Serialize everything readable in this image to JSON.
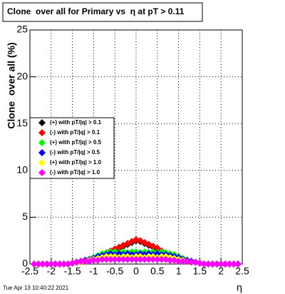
{
  "chart_data": {
    "type": "scatter",
    "title": "Clone  over all for Primary vs  η at pT > 0.11",
    "x_label": "η",
    "y_label": "Clone  over all (%)",
    "footer": "Tue Apr 13 10:40:22 2021",
    "xlim": [
      -2.5,
      2.5
    ],
    "ylim": [
      0,
      25
    ],
    "xticks": [
      -2.5,
      -2,
      -1.5,
      -1,
      -0.5,
      0,
      0.5,
      1,
      1.5,
      2,
      2.5
    ],
    "yticks": [
      0,
      5,
      10,
      15,
      20,
      25
    ],
    "grid": true,
    "legend": "left",
    "x": [
      -2.4,
      -2.3,
      -2.2,
      -2.1,
      -2,
      -1.9,
      -1.8,
      -1.7,
      -1.6,
      -1.5,
      -1.4,
      -1.3,
      -1.2,
      -1.1,
      -1,
      -0.9,
      -0.8,
      -0.7,
      -0.6,
      -0.5,
      -0.4,
      -0.3,
      -0.2,
      -0.1,
      0,
      0.1,
      0.2,
      0.3,
      0.4,
      0.5,
      0.6,
      0.7,
      0.8,
      0.9,
      1,
      1.1,
      1.2,
      1.3,
      1.4,
      1.5,
      1.6,
      1.7,
      1.8,
      1.9,
      2,
      2.1,
      2.2,
      2.3,
      2.4
    ],
    "series": [
      {
        "name": "(+) with pT/|q| > 0.1",
        "color": "#000000",
        "values": [
          0,
          0,
          0,
          0,
          0,
          0,
          0,
          0,
          0,
          0.1,
          0.2,
          0.3,
          0.4,
          0.5,
          0.6,
          0.7,
          0.9,
          1.1,
          1.3,
          1.5,
          1.7,
          1.9,
          2.1,
          2.3,
          2.5,
          2.4,
          2.2,
          2.0,
          1.8,
          1.6,
          1.3,
          1.1,
          0.9,
          0.7,
          0.6,
          0.5,
          0.4,
          0.3,
          0.2,
          0.1,
          0,
          0,
          0,
          0,
          0,
          0,
          0,
          0,
          0
        ]
      },
      {
        "name": "(-) with pT/|q| > 0.1",
        "color": "#ff0000",
        "values": [
          0,
          0,
          0,
          0,
          0,
          0,
          0,
          0,
          0,
          0.1,
          0.2,
          0.3,
          0.4,
          0.5,
          0.6,
          0.8,
          1.0,
          1.2,
          1.4,
          1.6,
          1.8,
          2.0,
          2.2,
          2.4,
          2.6,
          2.5,
          2.3,
          2.1,
          1.9,
          1.7,
          1.4,
          1.2,
          1.0,
          0.8,
          0.6,
          0.5,
          0.4,
          0.3,
          0.2,
          0.1,
          0,
          0,
          0,
          0,
          0,
          0,
          0,
          0,
          0
        ]
      },
      {
        "name": "(+) with pT/|q| > 0.5",
        "color": "#00ff00",
        "values": [
          0,
          0,
          0,
          0,
          0,
          0,
          0,
          0,
          0,
          0.1,
          0.2,
          0.3,
          0.4,
          0.5,
          0.7,
          0.9,
          1.1,
          1.2,
          1.3,
          1.3,
          1.2,
          1.3,
          1.2,
          1.3,
          1.3,
          1.2,
          1.3,
          1.2,
          1.3,
          1.2,
          1.3,
          1.2,
          1.1,
          1.0,
          0.8,
          0.6,
          0.4,
          0.3,
          0.2,
          0.1,
          0,
          0,
          0,
          0,
          0,
          0,
          0,
          0,
          0
        ]
      },
      {
        "name": "(-) with pT/|q| > 0.5",
        "color": "#0000ff",
        "values": [
          0,
          0,
          0,
          0,
          0,
          0,
          0,
          0,
          0,
          0.1,
          0.2,
          0.3,
          0.4,
          0.5,
          0.6,
          0.8,
          0.9,
          1.0,
          1.1,
          1.0,
          1.1,
          1.0,
          1.1,
          1.0,
          1.0,
          1.1,
          1.0,
          1.1,
          1.0,
          1.1,
          1.0,
          1.0,
          0.9,
          0.8,
          0.7,
          0.5,
          0.4,
          0.3,
          0.2,
          0.1,
          0,
          0,
          0,
          0,
          0,
          0,
          0,
          0,
          0
        ]
      },
      {
        "name": "(+) with pT/|q| > 1.0",
        "color": "#ffff00",
        "values": [
          0,
          0,
          0,
          0,
          0,
          0,
          0,
          0,
          0,
          0.1,
          0.2,
          0.2,
          0.3,
          0.4,
          0.5,
          0.6,
          0.7,
          0.8,
          0.8,
          0.8,
          0.7,
          0.8,
          0.8,
          0.7,
          0.8,
          0.8,
          0.7,
          0.8,
          0.8,
          0.7,
          0.8,
          0.8,
          0.7,
          0.6,
          0.5,
          0.4,
          0.3,
          0.2,
          0.2,
          0.1,
          0,
          0,
          0,
          0,
          0,
          0,
          0,
          0,
          0
        ]
      },
      {
        "name": "(-) with pT/|q| > 1.0",
        "color": "#ff00ff",
        "values": [
          0,
          0,
          0,
          0,
          0,
          0,
          0,
          0,
          0,
          0.1,
          0.2,
          0.3,
          0.3,
          0.3,
          0.4,
          0.4,
          0.5,
          0.5,
          0.5,
          0.5,
          0.5,
          0.5,
          0.5,
          0.5,
          0.5,
          0.5,
          0.5,
          0.5,
          0.5,
          0.5,
          0.5,
          0.5,
          0.4,
          0.4,
          0.3,
          0.3,
          0.3,
          0.2,
          0.2,
          0.1,
          0,
          0,
          0,
          0,
          0,
          0,
          0,
          0,
          0
        ]
      }
    ]
  }
}
